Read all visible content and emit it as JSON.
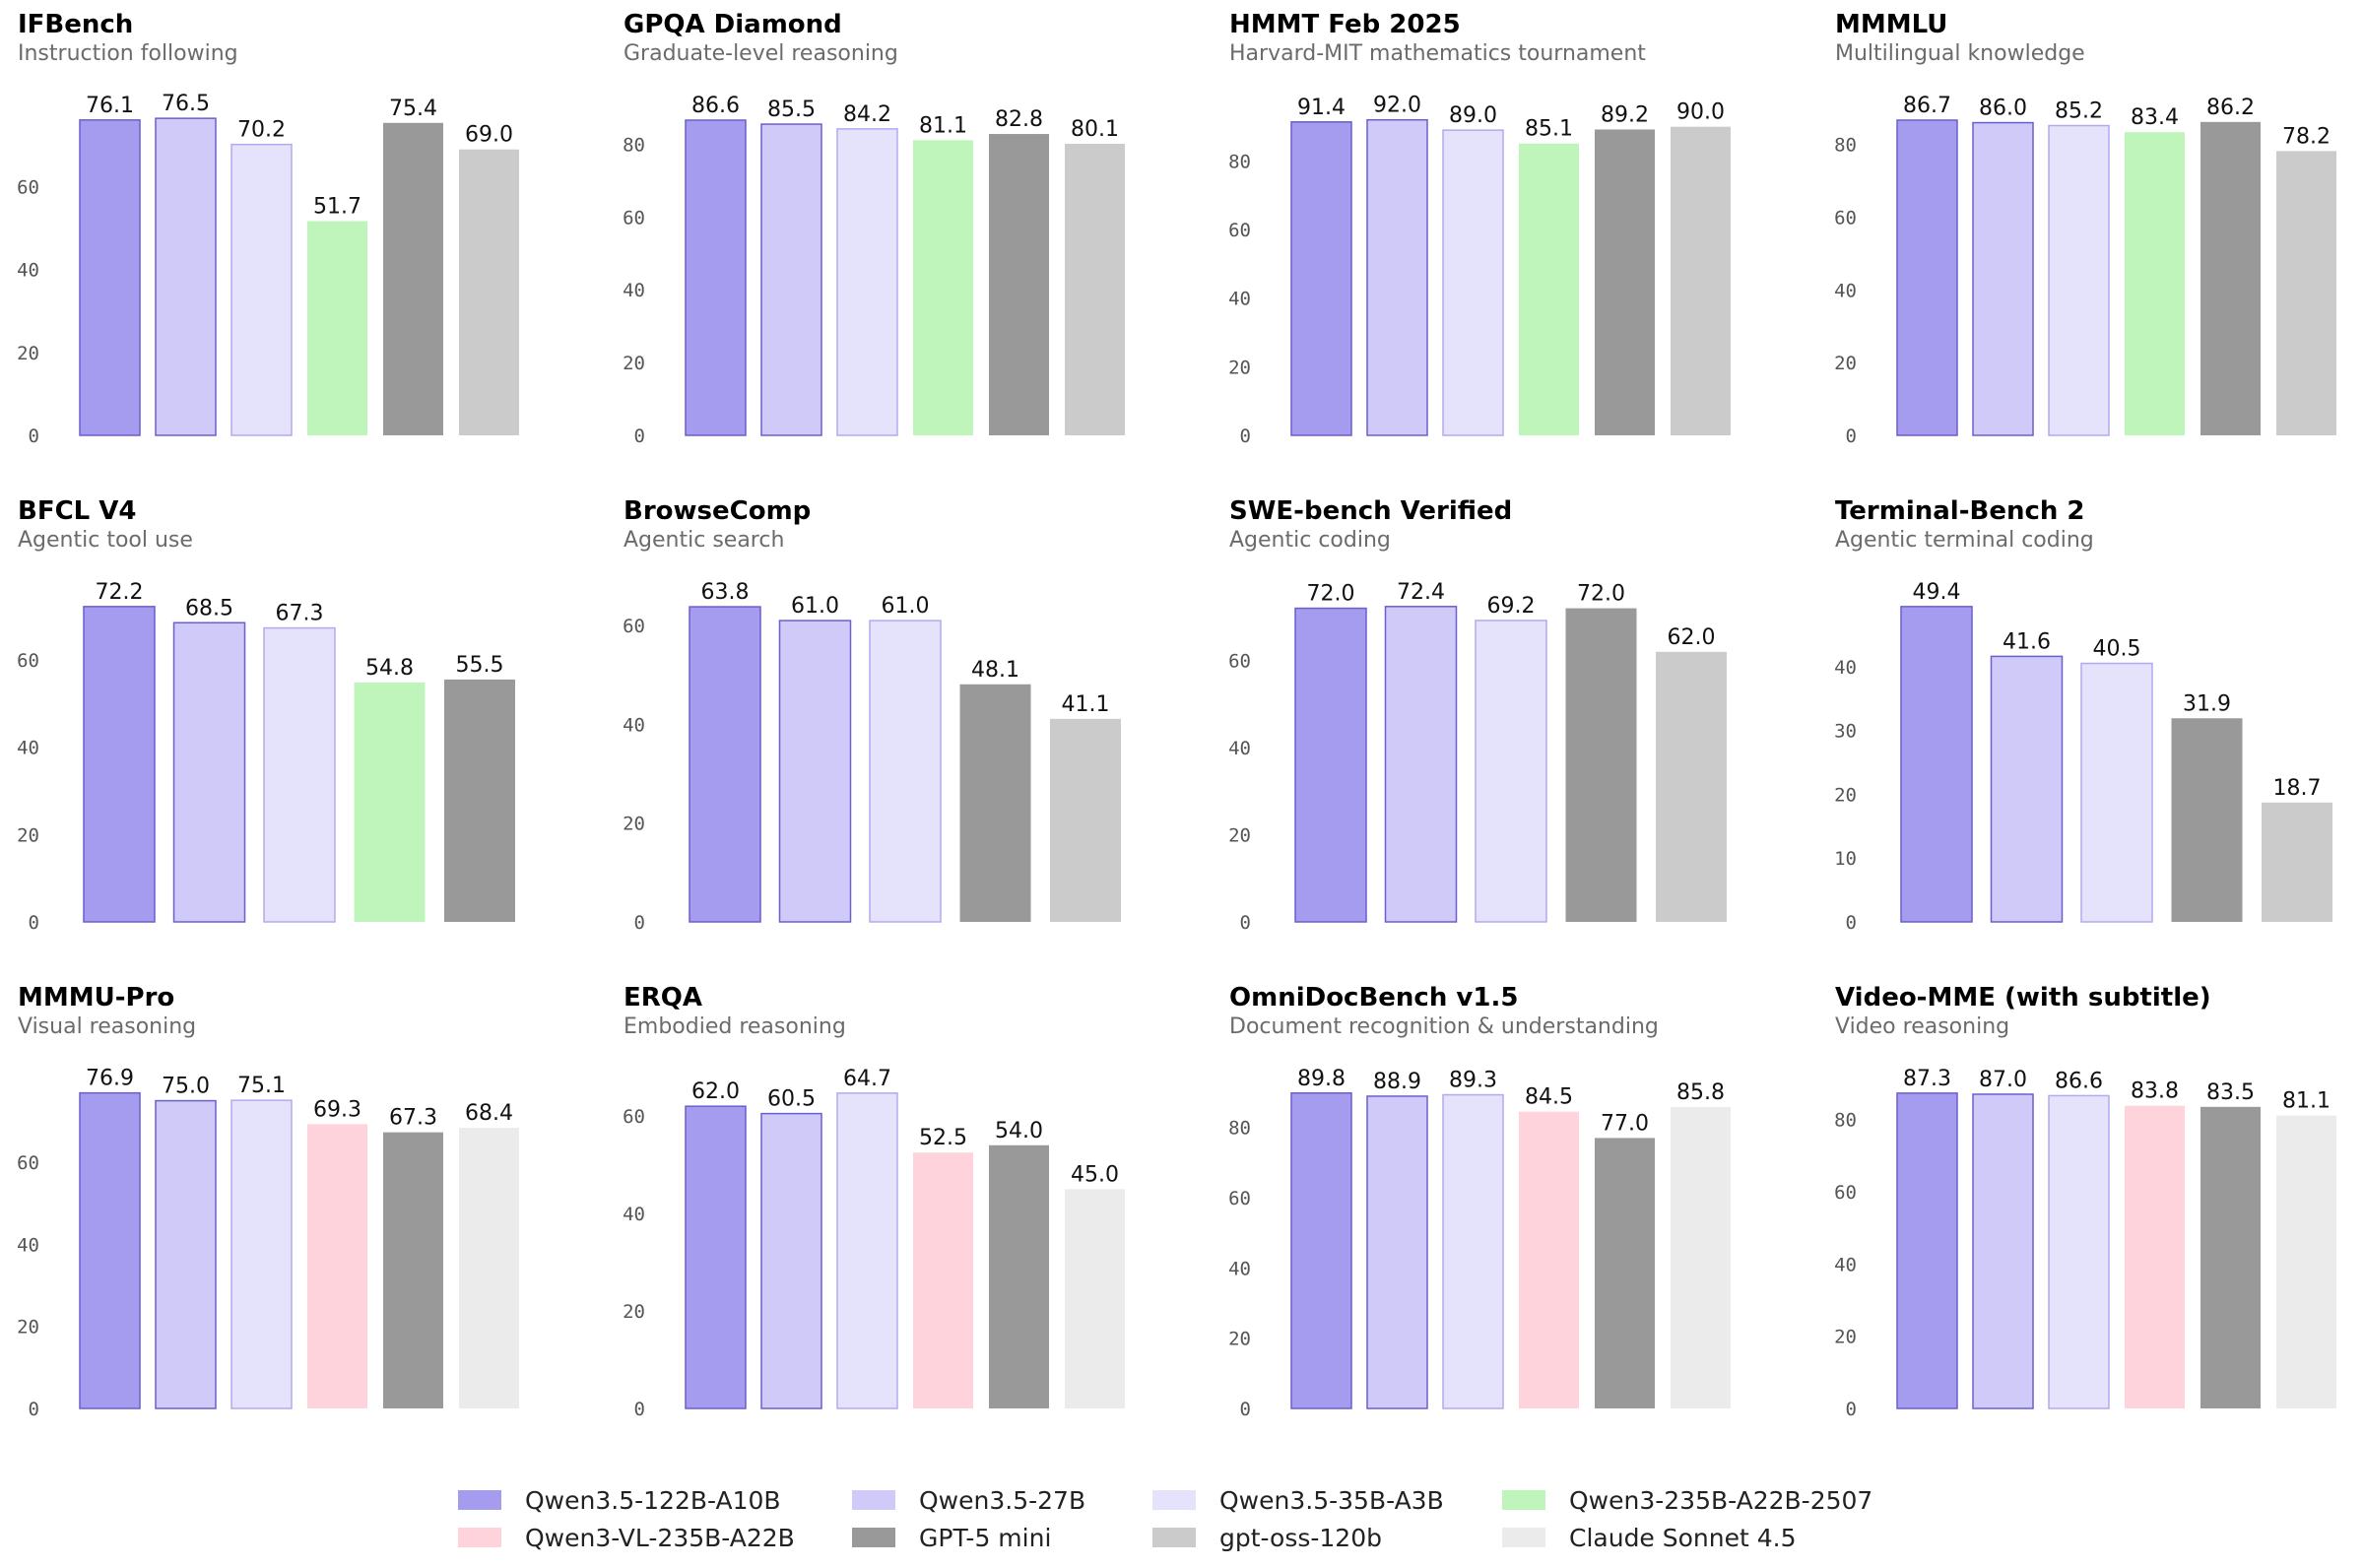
{
  "series_styles": [
    {
      "name": "Qwen3.5-122B-A10B",
      "fill": "#a59cf0",
      "stroke": "#6a5fd0"
    },
    {
      "name": "Qwen3.5-27B",
      "fill": "#cfcaf7",
      "stroke": "#6a5fd0"
    },
    {
      "name": "Qwen3.5-35B-A3B",
      "fill": "#e5e2fb",
      "stroke": "#b2aaee"
    },
    {
      "name": "Qwen3-235B-A22B-2507",
      "fill": "#bff4bb",
      "stroke": "none"
    },
    {
      "name": "Qwen3-VL-235B-A22B",
      "fill": "#ffd3db",
      "stroke": "none"
    },
    {
      "name": "GPT-5 mini",
      "fill": "#999999",
      "stroke": "none"
    },
    {
      "name": "gpt-oss-120b",
      "fill": "#cbcbcb",
      "stroke": "none"
    },
    {
      "name": "Claude Sonnet 4.5",
      "fill": "#ebebeb",
      "stroke": "none"
    }
  ],
  "legend": [
    "Qwen3.5-122B-A10B",
    "Qwen3.5-27B",
    "Qwen3.5-35B-A3B",
    "Qwen3-235B-A22B-2507",
    "Qwen3-VL-235B-A22B",
    "GPT-5 mini",
    "gpt-oss-120b",
    "Claude Sonnet 4.5"
  ],
  "chart_data": [
    {
      "type": "bar",
      "title": "IFBench",
      "subtitle": "Instruction following",
      "yticks": [
        0,
        20,
        40,
        60
      ],
      "ylim": [
        0,
        80.1
      ],
      "series_idx": [
        0,
        1,
        2,
        3,
        5,
        6
      ],
      "values": [
        76.1,
        76.5,
        70.2,
        51.7,
        75.4,
        69.0
      ]
    },
    {
      "type": "bar",
      "title": "GPQA Diamond",
      "subtitle": "Graduate-level reasoning",
      "yticks": [
        0,
        20,
        40,
        60,
        80
      ],
      "ylim": [
        0,
        91.2
      ],
      "series_idx": [
        0,
        1,
        2,
        3,
        5,
        6
      ],
      "values": [
        86.6,
        85.5,
        84.2,
        81.1,
        82.8,
        80.1
      ]
    },
    {
      "type": "bar",
      "title": "HMMT Feb 2025",
      "subtitle": "Harvard-MIT mathematics tournament",
      "yticks": [
        0,
        20,
        40,
        60,
        80
      ],
      "ylim": [
        0,
        96.8
      ],
      "series_idx": [
        0,
        1,
        2,
        3,
        5,
        6
      ],
      "values": [
        91.4,
        92.0,
        89.0,
        85.1,
        89.2,
        90.0
      ]
    },
    {
      "type": "bar",
      "title": "MMMLU",
      "subtitle": "Multilingual knowledge",
      "yticks": [
        0,
        20,
        40,
        60,
        80
      ],
      "ylim": [
        0,
        91.3
      ],
      "series_idx": [
        0,
        1,
        2,
        3,
        5,
        6
      ],
      "values": [
        86.7,
        86.0,
        85.2,
        83.4,
        86.2,
        78.2
      ]
    },
    {
      "type": "bar",
      "title": "BFCL V4",
      "subtitle": "Agentic tool use",
      "yticks": [
        0,
        20,
        40,
        60
      ],
      "ylim": [
        0,
        76.0
      ],
      "series_idx": [
        0,
        1,
        2,
        3,
        5
      ],
      "values": [
        72.2,
        68.5,
        67.3,
        54.8,
        55.5
      ]
    },
    {
      "type": "bar",
      "title": "BrowseComp",
      "subtitle": "Agentic search",
      "yticks": [
        0,
        20,
        40,
        60
      ],
      "ylim": [
        0,
        67.2
      ],
      "series_idx": [
        0,
        1,
        2,
        5,
        6
      ],
      "values": [
        63.8,
        61.0,
        61.0,
        48.1,
        41.1
      ]
    },
    {
      "type": "bar",
      "title": "SWE-bench Verified",
      "subtitle": "Agentic coding",
      "yticks": [
        0,
        20,
        40,
        60
      ],
      "ylim": [
        0,
        76.2
      ],
      "series_idx": [
        0,
        1,
        2,
        5,
        6
      ],
      "values": [
        72.0,
        72.4,
        69.2,
        72.0,
        62.0
      ]
    },
    {
      "type": "bar",
      "title": "Terminal-Bench 2",
      "subtitle": "Agentic terminal coding",
      "yticks": [
        0,
        10,
        20,
        30,
        40
      ],
      "ylim": [
        0,
        52.0
      ],
      "series_idx": [
        0,
        1,
        2,
        5,
        6
      ],
      "values": [
        49.4,
        41.6,
        40.5,
        31.9,
        18.7
      ]
    },
    {
      "type": "bar",
      "title": "MMMU-Pro",
      "subtitle": "Visual reasoning",
      "yticks": [
        0,
        20,
        40,
        60
      ],
      "ylim": [
        0,
        80.9
      ],
      "series_idx": [
        0,
        1,
        2,
        4,
        5,
        7
      ],
      "values": [
        76.9,
        75.0,
        75.1,
        69.3,
        67.3,
        68.4
      ]
    },
    {
      "type": "bar",
      "title": "ERQA",
      "subtitle": "Embodied reasoning",
      "yticks": [
        0,
        20,
        40,
        60
      ],
      "ylim": [
        0,
        68.1
      ],
      "series_idx": [
        0,
        1,
        2,
        4,
        5,
        7
      ],
      "values": [
        62.0,
        60.5,
        64.7,
        52.5,
        54.0,
        45.0
      ]
    },
    {
      "type": "bar",
      "title": "OmniDocBench v1.5",
      "subtitle": "Document recognition & understanding",
      "yticks": [
        0,
        20,
        40,
        60,
        80
      ],
      "ylim": [
        0,
        94.5
      ],
      "series_idx": [
        0,
        1,
        2,
        4,
        5,
        7
      ],
      "values": [
        89.8,
        88.9,
        89.3,
        84.5,
        77.0,
        85.8
      ]
    },
    {
      "type": "bar",
      "title": "Video-MME (with subtitle)",
      "subtitle": "Video reasoning",
      "yticks": [
        0,
        20,
        40,
        60,
        80
      ],
      "ylim": [
        0,
        91.9
      ],
      "series_idx": [
        0,
        1,
        2,
        4,
        5,
        7
      ],
      "values": [
        87.3,
        87.0,
        86.6,
        83.8,
        83.5,
        81.1
      ]
    }
  ]
}
